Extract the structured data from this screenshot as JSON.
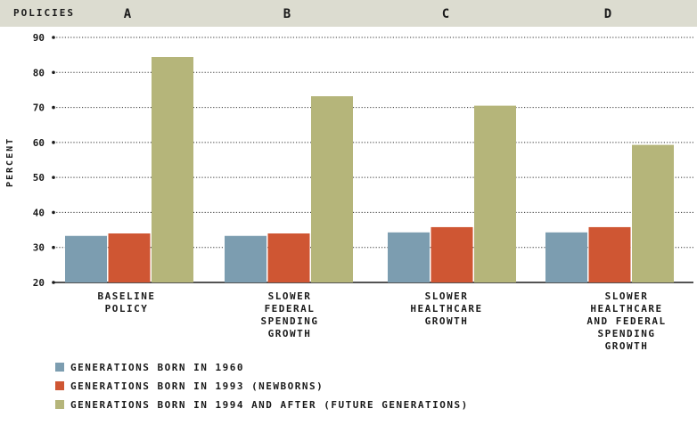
{
  "header": {
    "label": "POLICIES",
    "policies": [
      "A",
      "B",
      "C",
      "D"
    ]
  },
  "colors": {
    "series": [
      "#7c9db0",
      "#cf5633",
      "#b5b57a"
    ],
    "header_bg": "#dcdcd0",
    "grid": "#333333"
  },
  "chart_data": {
    "type": "bar",
    "title": "",
    "xlabel": "",
    "ylabel": "PERCENT",
    "ylim": [
      20,
      90
    ],
    "yticks": [
      20,
      30,
      40,
      50,
      60,
      70,
      80,
      90
    ],
    "grid": "horizontal dotted",
    "legend_position": "bottom-left",
    "categories": [
      "BASELINE\nPOLICY",
      "SLOWER\nFEDERAL\nSPENDING\nGROWTH",
      "SLOWER\nHEALTHCARE\nGROWTH",
      "SLOWER\nHEALTHCARE\nAND FEDERAL\nSPENDING\nGROWTH"
    ],
    "series": [
      {
        "name": "GENERATIONS BORN IN 1960",
        "values": [
          33.3,
          33.3,
          34.3,
          34.3
        ]
      },
      {
        "name": "GENERATIONS BORN IN 1993 (NEWBORNS)",
        "values": [
          34.0,
          34.0,
          35.8,
          35.8
        ]
      },
      {
        "name": "GENERATIONS BORN IN 1994 AND AFTER (FUTURE GENERATIONS)",
        "values": [
          84.4,
          73.2,
          70.5,
          59.3
        ]
      }
    ]
  }
}
